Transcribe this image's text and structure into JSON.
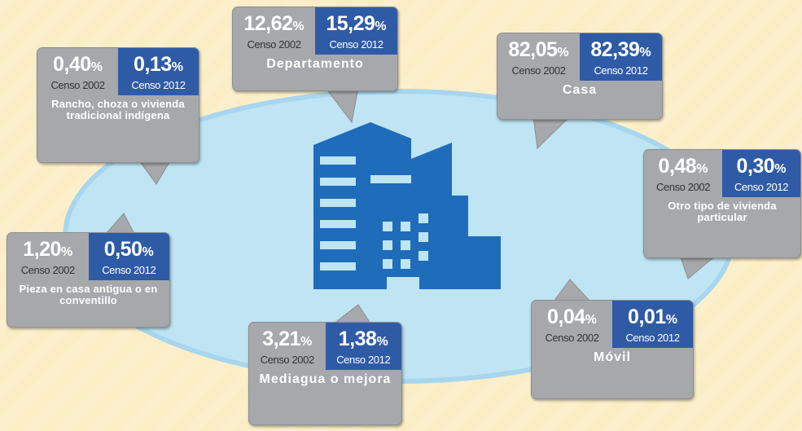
{
  "unit": "%",
  "censuses": [
    "Censo 2002",
    "Censo 2012"
  ],
  "items": [
    {
      "label": "Departamento",
      "v2002": "12,62",
      "v2012": "15,29"
    },
    {
      "label": "Casa",
      "v2002": "82,05",
      "v2012": "82,39"
    },
    {
      "label": "Rancho, choza o vivienda tradicional indígena",
      "v2002": "0,40",
      "v2012": "0,13"
    },
    {
      "label": "Otro tipo de vivienda particular",
      "v2002": "0,48",
      "v2012": "0,30"
    },
    {
      "label": "Pieza en casa antigua o en conventillo",
      "v2002": "1,20",
      "v2012": "0,50"
    },
    {
      "label": "Móvil",
      "v2002": "0,04",
      "v2012": "0,01"
    },
    {
      "label": "Mediagua o mejora",
      "v2002": "3,21",
      "v2012": "1,38"
    }
  ]
}
